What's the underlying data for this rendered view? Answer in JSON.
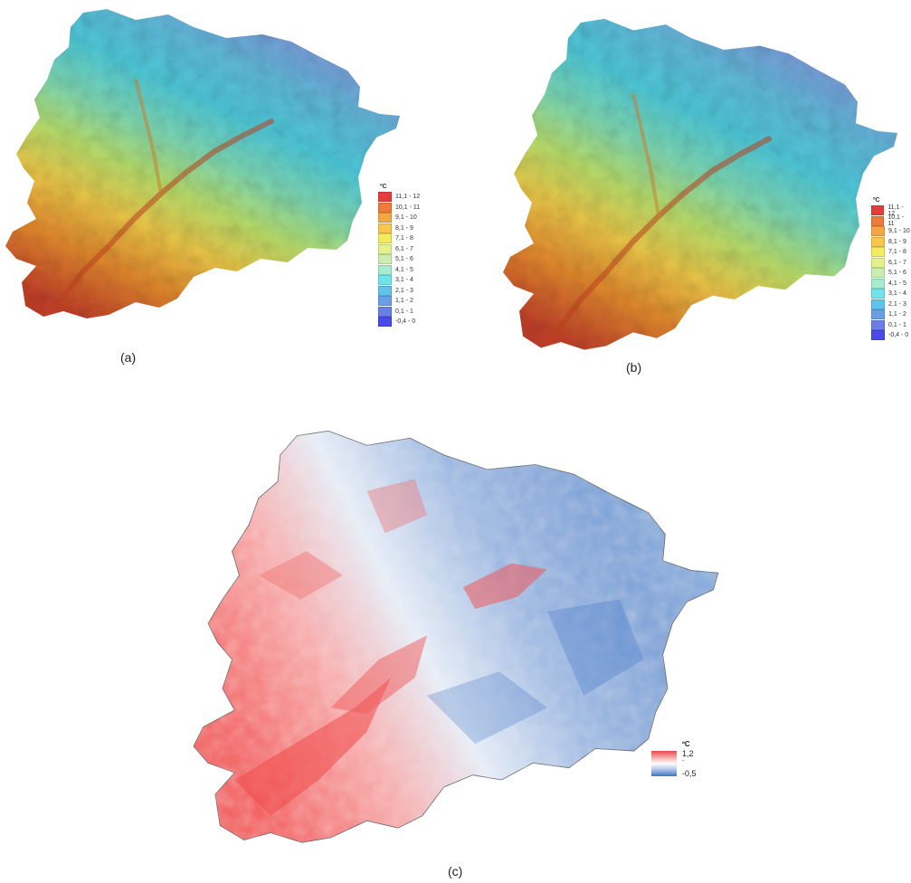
{
  "panels": [
    {
      "caption": "(a)",
      "legend": {
        "unit": "ºC",
        "items": [
          {
            "label": "11,1 - 12",
            "color": "#e83c3c"
          },
          {
            "label": "10,1 - 11",
            "color": "#f07a3a"
          },
          {
            "label": "9,1 - 10",
            "color": "#f5a640"
          },
          {
            "label": "8,1 - 9",
            "color": "#f7c64a"
          },
          {
            "label": "7,1 - 8",
            "color": "#f4ec5c"
          },
          {
            "label": "6,1 - 7",
            "color": "#e4f28a"
          },
          {
            "label": "5,1 - 6",
            "color": "#c9efb0"
          },
          {
            "label": "4,1 - 5",
            "color": "#a8ecd0"
          },
          {
            "label": "3,1 - 4",
            "color": "#6fe4ea"
          },
          {
            "label": "2,1 - 3",
            "color": "#5ec4ea"
          },
          {
            "label": "1,1 - 2",
            "color": "#6a9ee6"
          },
          {
            "label": "0,1 - 1",
            "color": "#6a7ee8"
          },
          {
            "label": "-0,4 - 0",
            "color": "#4a4ae8"
          }
        ]
      }
    },
    {
      "caption": "(b)",
      "legend": {
        "unit": "ºC",
        "items": [
          {
            "label": "11,1 - 12",
            "color": "#e83c3c"
          },
          {
            "label": "10,1 - 11",
            "color": "#f07a3a"
          },
          {
            "label": "9,1 - 10",
            "color": "#f5a640"
          },
          {
            "label": "8,1 - 9",
            "color": "#f7c64a"
          },
          {
            "label": "7,1 - 8",
            "color": "#f4ec5c"
          },
          {
            "label": "6,1 - 7",
            "color": "#e4f28a"
          },
          {
            "label": "5,1 - 6",
            "color": "#c9efb0"
          },
          {
            "label": "4,1 - 5",
            "color": "#a8ecd0"
          },
          {
            "label": "3,1 - 4",
            "color": "#6fe4ea"
          },
          {
            "label": "2,1 - 3",
            "color": "#5ec4ea"
          },
          {
            "label": "1,1 - 2",
            "color": "#6a9ee6"
          },
          {
            "label": "0,1 - 1",
            "color": "#6a7ee8"
          },
          {
            "label": "-0,4 - 0",
            "color": "#4a4ae8"
          }
        ]
      }
    },
    {
      "caption": "(c)",
      "legend": {
        "unit": "ºC",
        "max_label": "1,2",
        "min_label": "-0,5",
        "colors": {
          "high": "#e84a4a",
          "mid": "#ffffff",
          "low": "#3f73c4"
        }
      }
    }
  ]
}
